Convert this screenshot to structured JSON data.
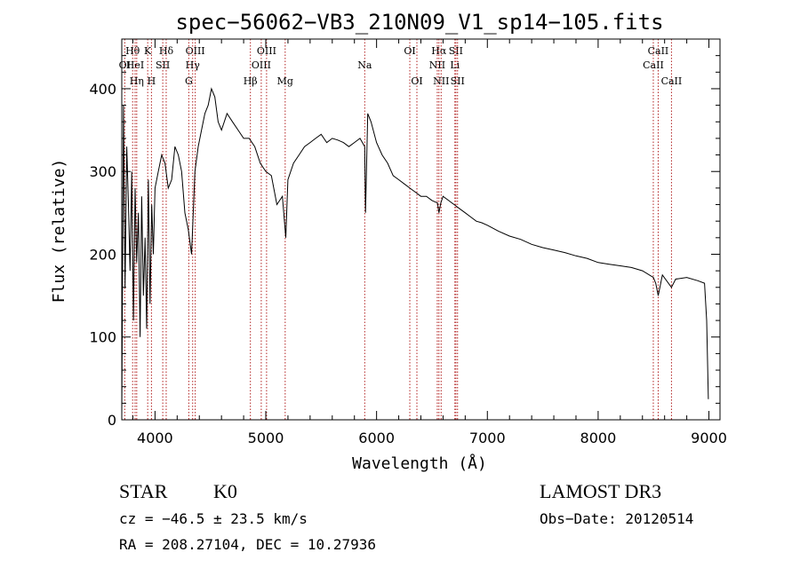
{
  "chart_data": {
    "type": "line",
    "title": "spec−56062−VB3_210N09_V1_sp14−105.fits",
    "xlabel": "Wavelength (Å)",
    "ylabel": "Flux (relative)",
    "xlim": [
      3700,
      9100
    ],
    "ylim": [
      0,
      460
    ],
    "xticks": [
      4000,
      5000,
      6000,
      7000,
      8000,
      9000
    ],
    "yticks": [
      0,
      100,
      200,
      300,
      400
    ],
    "grid": false,
    "legend": "none",
    "series": [
      {
        "name": "flux",
        "x": [
          3700,
          3715,
          3730,
          3745,
          3760,
          3775,
          3790,
          3805,
          3820,
          3835,
          3850,
          3865,
          3880,
          3895,
          3910,
          3925,
          3940,
          3955,
          3970,
          3985,
          4000,
          4030,
          4060,
          4090,
          4120,
          4150,
          4180,
          4210,
          4240,
          4270,
          4300,
          4330,
          4360,
          4390,
          4420,
          4450,
          4480,
          4510,
          4540,
          4570,
          4600,
          4650,
          4700,
          4750,
          4800,
          4850,
          4900,
          4950,
          5000,
          5050,
          5100,
          5150,
          5180,
          5200,
          5250,
          5300,
          5350,
          5400,
          5450,
          5500,
          5550,
          5600,
          5650,
          5700,
          5750,
          5800,
          5850,
          5893,
          5900,
          5920,
          5950,
          6000,
          6050,
          6100,
          6150,
          6200,
          6250,
          6300,
          6350,
          6400,
          6450,
          6500,
          6550,
          6563,
          6580,
          6600,
          6650,
          6700,
          6750,
          6800,
          6850,
          6900,
          6950,
          7000,
          7100,
          7200,
          7300,
          7400,
          7500,
          7600,
          7700,
          7800,
          7900,
          8000,
          8100,
          8200,
          8300,
          8400,
          8498,
          8520,
          8542,
          8580,
          8662,
          8700,
          8800,
          8900,
          8960,
          8980,
          8995
        ],
        "values": [
          5,
          380,
          160,
          330,
          260,
          180,
          300,
          120,
          280,
          190,
          250,
          100,
          270,
          150,
          220,
          110,
          290,
          140,
          260,
          200,
          280,
          300,
          320,
          310,
          280,
          290,
          330,
          320,
          300,
          250,
          230,
          200,
          300,
          330,
          350,
          370,
          380,
          400,
          390,
          360,
          350,
          370,
          360,
          350,
          340,
          340,
          330,
          310,
          300,
          295,
          260,
          270,
          220,
          290,
          310,
          320,
          330,
          335,
          340,
          345,
          335,
          340,
          338,
          335,
          330,
          335,
          340,
          330,
          250,
          370,
          360,
          335,
          320,
          310,
          295,
          290,
          285,
          280,
          275,
          270,
          270,
          265,
          262,
          250,
          262,
          270,
          265,
          260,
          255,
          250,
          245,
          240,
          238,
          235,
          228,
          222,
          218,
          212,
          208,
          205,
          202,
          198,
          195,
          190,
          188,
          186,
          184,
          180,
          172,
          165,
          150,
          175,
          160,
          170,
          172,
          168,
          165,
          120,
          25
        ]
      }
    ],
    "line_markers": [
      {
        "label": "OⅠ",
        "wavelength": 3727,
        "row": 2
      },
      {
        "label": "Hθ",
        "wavelength": 3798,
        "row": 1
      },
      {
        "label": "HeⅠ",
        "wavelength": 3820,
        "row": 2
      },
      {
        "label": "Hη",
        "wavelength": 3835,
        "row": 3
      },
      {
        "label": "K",
        "wavelength": 3934,
        "row": 1
      },
      {
        "label": "H",
        "wavelength": 3968,
        "row": 3
      },
      {
        "label": "Hδ",
        "wavelength": 4101,
        "row": 1
      },
      {
        "label": "SⅠⅠ",
        "wavelength": 4070,
        "row": 2
      },
      {
        "label": "OⅠⅠⅠ",
        "wavelength": 4363,
        "row": 1
      },
      {
        "label": "Hγ",
        "wavelength": 4340,
        "row": 2
      },
      {
        "label": "G",
        "wavelength": 4305,
        "row": 3
      },
      {
        "label": "Hβ",
        "wavelength": 4861,
        "row": 3
      },
      {
        "label": "OⅠⅠⅠ",
        "wavelength": 5007,
        "row": 1
      },
      {
        "label": "OⅠⅠⅠ",
        "wavelength": 4959,
        "row": 2
      },
      {
        "label": "Mg",
        "wavelength": 5175,
        "row": 3
      },
      {
        "label": "Na",
        "wavelength": 5893,
        "row": 2
      },
      {
        "label": "OⅠ",
        "wavelength": 6300,
        "row": 1
      },
      {
        "label": "OⅠ",
        "wavelength": 6364,
        "row": 3
      },
      {
        "label": "Hα",
        "wavelength": 6563,
        "row": 1
      },
      {
        "label": "NⅠⅠ",
        "wavelength": 6548,
        "row": 2
      },
      {
        "label": "NⅠⅠ",
        "wavelength": 6583,
        "row": 3
      },
      {
        "label": "SⅠⅠ",
        "wavelength": 6716,
        "row": 1
      },
      {
        "label": "Li",
        "wavelength": 6707,
        "row": 2
      },
      {
        "label": "SⅠⅠ",
        "wavelength": 6731,
        "row": 3
      },
      {
        "label": "CaⅠⅠ",
        "wavelength": 8542,
        "row": 1
      },
      {
        "label": "CaⅠⅠ",
        "wavelength": 8498,
        "row": 2
      },
      {
        "label": "CaⅠⅠ",
        "wavelength": 8662,
        "row": 3
      }
    ]
  },
  "info": {
    "class_label": "STAR",
    "subclass": "K0",
    "survey": "LAMOST DR3",
    "redshift_text": "cz = −46.5 ± 23.5 km/s",
    "obs_date_text": "Obs−Date: 20120514",
    "coords_text": "RA = 208.27104, DEC =  10.27936"
  },
  "colors": {
    "line": "#000000",
    "marker": "#b22222"
  }
}
